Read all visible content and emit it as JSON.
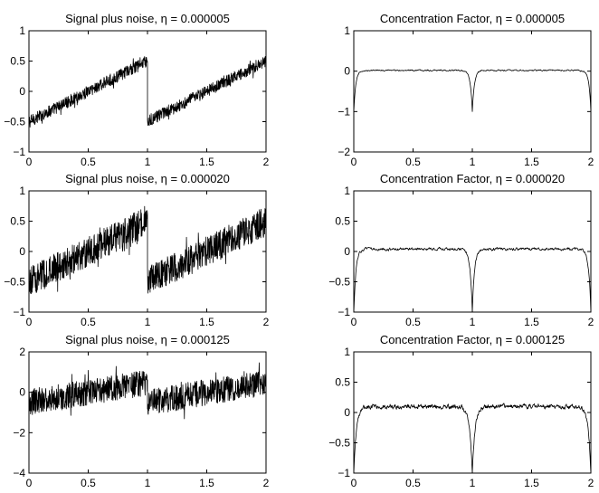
{
  "chart_data": [
    {
      "type": "line",
      "title": "Signal plus noise, η = 0.000005",
      "xlim": [
        0,
        2
      ],
      "ylim": [
        -1,
        1
      ],
      "xticks": [
        0,
        0.5,
        1,
        1.5,
        2
      ],
      "xtick_labels": [
        "0",
        "0.5",
        "1",
        "1.5",
        "2"
      ],
      "yticks": [
        1,
        0.5,
        0,
        -0.5,
        -1
      ],
      "ytick_labels": [
        "1",
        "0.5",
        "0",
        "−0.5",
        "−1"
      ],
      "signal": "sawtooth",
      "jump_at": 1,
      "segments": [
        {
          "x": [
            0,
            1
          ],
          "y": [
            -0.5,
            0.5
          ]
        },
        {
          "x": [
            1,
            2
          ],
          "y": [
            -0.5,
            0.5
          ]
        }
      ],
      "noise_amplitude": 0.1
    },
    {
      "type": "line",
      "title": "Concentration Factor, η = 0.000005",
      "xlim": [
        0,
        2
      ],
      "ylim": [
        -2,
        1
      ],
      "xticks": [
        0,
        0.5,
        1,
        1.5,
        2
      ],
      "xtick_labels": [
        "0",
        "0.5",
        "1",
        "1.5",
        "2"
      ],
      "yticks": [
        1,
        0,
        -1,
        -2
      ],
      "ytick_labels": [
        "1",
        "0",
        "−1",
        "−2"
      ],
      "signal": "concentration",
      "baseline": 0.02,
      "spikes": [
        {
          "x": 0,
          "y": -1
        },
        {
          "x": 1,
          "y": -1
        },
        {
          "x": 2,
          "y": -1
        }
      ],
      "noise_amplitude": 0.03
    },
    {
      "type": "line",
      "title": "Signal plus noise, η = 0.000020",
      "xlim": [
        0,
        2
      ],
      "ylim": [
        -1,
        1
      ],
      "xticks": [
        0,
        0.5,
        1,
        1.5,
        2
      ],
      "xtick_labels": [
        "0",
        "0.5",
        "1",
        "1.5",
        "2"
      ],
      "yticks": [
        1,
        0.5,
        0,
        -0.5,
        -1
      ],
      "ytick_labels": [
        "1",
        "0.5",
        "0",
        "−0.5",
        "−1"
      ],
      "signal": "sawtooth",
      "jump_at": 1,
      "segments": [
        {
          "x": [
            0,
            1
          ],
          "y": [
            -0.5,
            0.5
          ]
        },
        {
          "x": [
            1,
            2
          ],
          "y": [
            -0.5,
            0.5
          ]
        }
      ],
      "noise_amplitude": 0.25
    },
    {
      "type": "line",
      "title": "Concentration Factor, η = 0.000020",
      "xlim": [
        0,
        2
      ],
      "ylim": [
        -1,
        1
      ],
      "xticks": [
        0,
        0.5,
        1,
        1.5,
        2
      ],
      "xtick_labels": [
        "0",
        "0.5",
        "1",
        "1.5",
        "2"
      ],
      "yticks": [
        1,
        0.5,
        0,
        -0.5,
        -1
      ],
      "ytick_labels": [
        "1",
        "0.5",
        "0",
        "−0.5",
        "−1"
      ],
      "signal": "concentration",
      "baseline": 0.04,
      "spikes": [
        {
          "x": 0,
          "y": -1
        },
        {
          "x": 1,
          "y": -1
        },
        {
          "x": 2,
          "y": -1
        }
      ],
      "noise_amplitude": 0.04
    },
    {
      "type": "line",
      "title": "Signal plus noise, η = 0.000125",
      "xlim": [
        0,
        2
      ],
      "ylim": [
        -4,
        2
      ],
      "xticks": [
        0,
        0.5,
        1,
        1.5,
        2
      ],
      "xtick_labels": [
        "0",
        "0.5",
        "1",
        "1.5",
        "2"
      ],
      "yticks": [
        2,
        0,
        -2,
        -4
      ],
      "ytick_labels": [
        "2",
        "0",
        "−2",
        "−4"
      ],
      "signal": "sawtooth",
      "jump_at": 1,
      "segments": [
        {
          "x": [
            0,
            1
          ],
          "y": [
            -0.5,
            0.5
          ]
        },
        {
          "x": [
            1,
            2
          ],
          "y": [
            -0.5,
            0.5
          ]
        }
      ],
      "noise_amplitude": 0.65
    },
    {
      "type": "line",
      "title": "Concentration Factor, η = 0.000125",
      "xlim": [
        0,
        2
      ],
      "ylim": [
        -1,
        1
      ],
      "xticks": [
        0,
        0.5,
        1,
        1.5,
        2
      ],
      "xtick_labels": [
        "0",
        "0.5",
        "1",
        "1.5",
        "2"
      ],
      "yticks": [
        1,
        0.5,
        0,
        -0.5,
        -1
      ],
      "ytick_labels": [
        "1",
        "0.5",
        "0",
        "−0.5",
        "−1"
      ],
      "signal": "concentration",
      "baseline": 0.1,
      "spikes": [
        {
          "x": 0,
          "y": -1
        },
        {
          "x": 1,
          "y": -1
        },
        {
          "x": 2,
          "y": -1
        }
      ],
      "noise_amplitude": 0.07
    }
  ]
}
